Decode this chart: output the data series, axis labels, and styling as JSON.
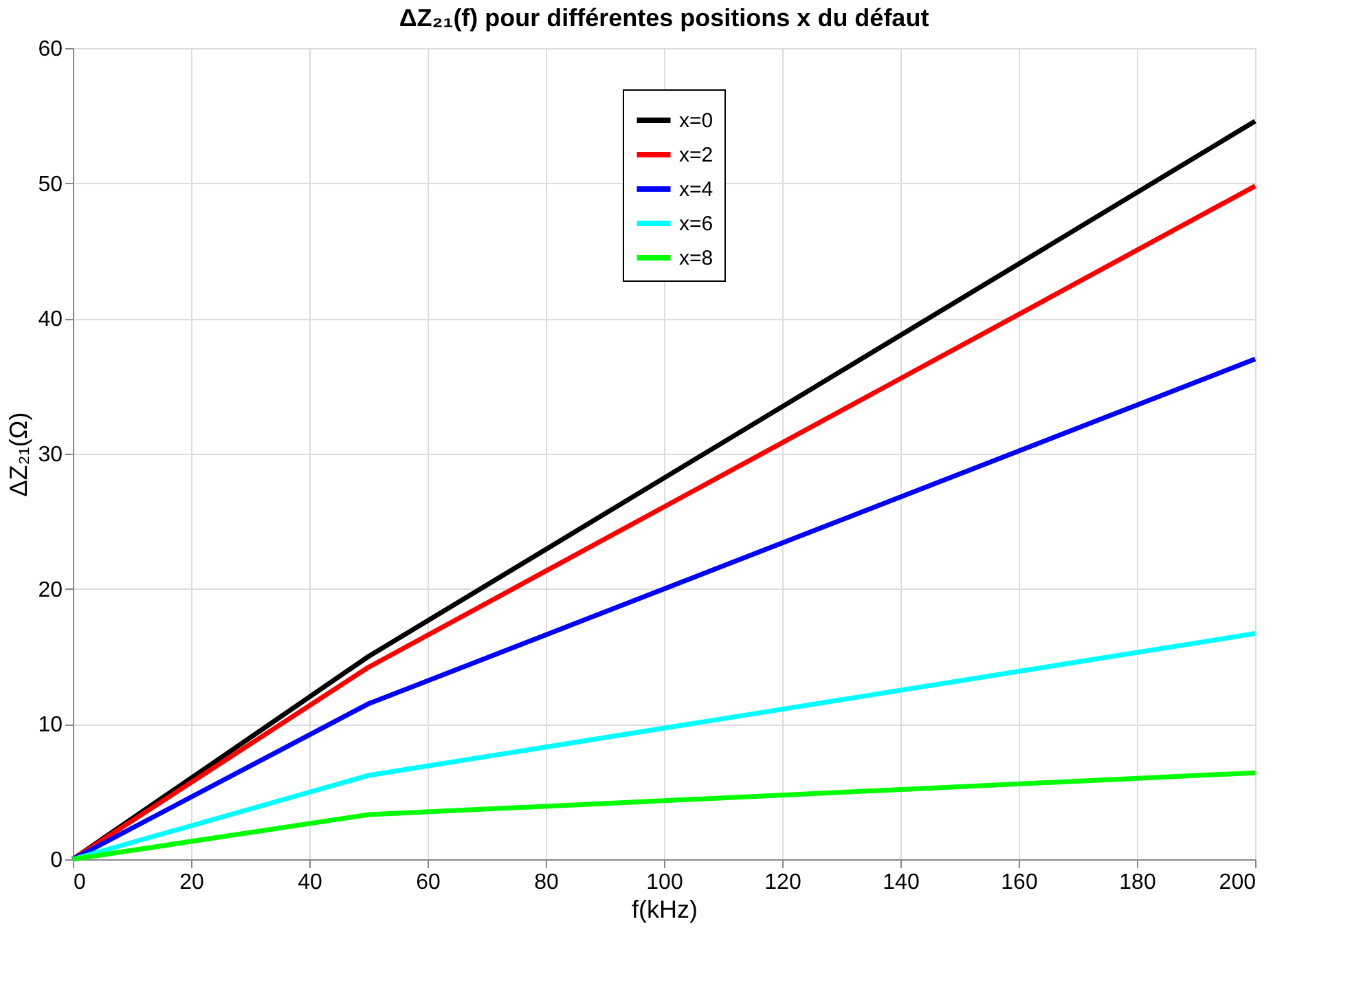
{
  "chart_data": {
    "type": "line",
    "title": "ΔZ₂₁(f) pour différentes positions x du défaut",
    "xlabel": "f(kHz)",
    "ylabel": "ΔZ₂₁(Ω)",
    "x": [
      0,
      50,
      200
    ],
    "series": [
      {
        "name": "x=0",
        "color": "#000000",
        "values": [
          0,
          15,
          54.6
        ]
      },
      {
        "name": "x=2",
        "color": "#ff0000",
        "values": [
          0,
          14.2,
          49.8
        ]
      },
      {
        "name": "x=4",
        "color": "#0000ff",
        "values": [
          0,
          11.5,
          37
        ]
      },
      {
        "name": "x=6",
        "color": "#00ffff",
        "values": [
          0,
          6.2,
          16.7
        ]
      },
      {
        "name": "x=8",
        "color": "#00ff00",
        "values": [
          0,
          3.3,
          6.4
        ]
      }
    ],
    "xlim": [
      0,
      200
    ],
    "xticks": [
      0,
      20,
      40,
      60,
      80,
      100,
      120,
      140,
      160,
      180,
      200
    ],
    "ylim": [
      0,
      60
    ],
    "yticks": [
      0,
      10,
      20,
      30,
      40,
      50,
      60
    ],
    "grid": true,
    "legend": "top",
    "marker": "none",
    "line_style": "solid"
  }
}
